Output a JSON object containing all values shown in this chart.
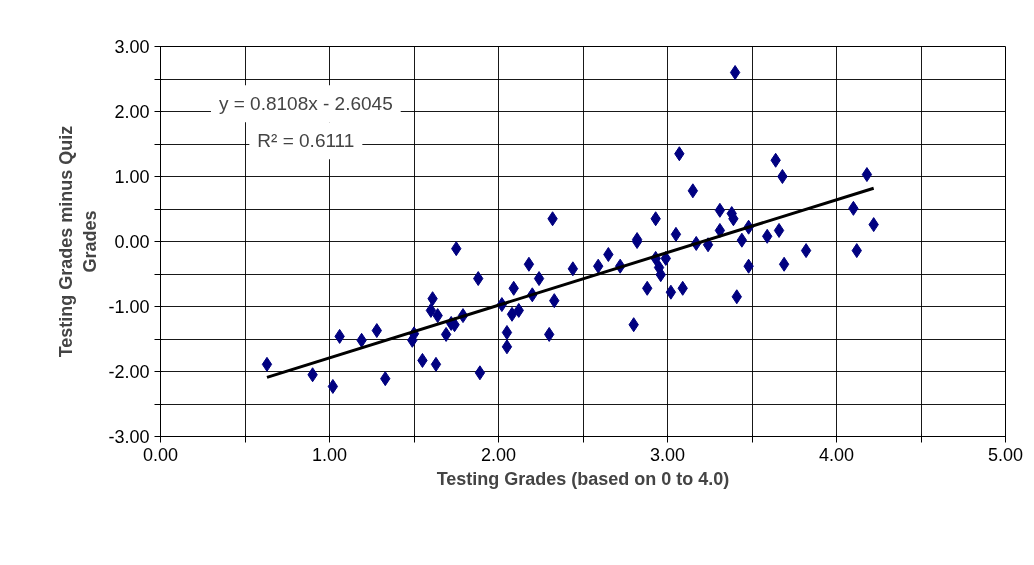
{
  "chart_data": {
    "type": "scatter",
    "xlabel": "Testing Grades (based on 0 to 4.0)",
    "ylabel": "Testing Grades minus Quiz Grades",
    "annotations": [
      "y = 0.8108x - 2.6045",
      "R² = 0.6111"
    ],
    "xlim": [
      0,
      5
    ],
    "ylim": [
      -3,
      3
    ],
    "xticks": [
      {
        "value": 0,
        "label": "0.00"
      },
      {
        "value": 0.5,
        "label": null
      },
      {
        "value": 1,
        "label": "1.00"
      },
      {
        "value": 1.5,
        "label": null
      },
      {
        "value": 2,
        "label": "2.00"
      },
      {
        "value": 2.5,
        "label": null
      },
      {
        "value": 3,
        "label": "3.00"
      },
      {
        "value": 3.5,
        "label": null
      },
      {
        "value": 4,
        "label": "4.00"
      },
      {
        "value": 4.5,
        "label": null
      },
      {
        "value": 5,
        "label": "5.00"
      }
    ],
    "yticks": [
      {
        "value": -3,
        "label": "-3.00"
      },
      {
        "value": -2.5,
        "label": null
      },
      {
        "value": -2,
        "label": "-2.00"
      },
      {
        "value": -1.5,
        "label": null
      },
      {
        "value": -1,
        "label": "-1.00"
      },
      {
        "value": -0.5,
        "label": null
      },
      {
        "value": 0,
        "label": "0.00"
      },
      {
        "value": 0.5,
        "label": null
      },
      {
        "value": 1,
        "label": "1.00"
      },
      {
        "value": 1.5,
        "label": null
      },
      {
        "value": 2,
        "label": "2.00"
      },
      {
        "value": 2.5,
        "label": null
      },
      {
        "value": 3,
        "label": "3.00"
      }
    ],
    "grid": true,
    "marker": "diamond",
    "series": [
      {
        "color": "#000080",
        "x": [
          0.63,
          0.9,
          1.02,
          1.06,
          1.19,
          1.28,
          1.33,
          1.49,
          1.5,
          1.55,
          1.61,
          1.6,
          1.63,
          1.64,
          1.69,
          1.72,
          1.74,
          1.75,
          1.79,
          1.88,
          1.89,
          2.02,
          2.05,
          2.05,
          2.09,
          2.08,
          2.12,
          2.18,
          2.2,
          2.24,
          2.3,
          2.32,
          2.33,
          2.44,
          2.59,
          2.65,
          2.72,
          2.8,
          2.82,
          2.82,
          2.88,
          2.93,
          2.93,
          2.95,
          2.96,
          2.99,
          3.02,
          3.05,
          3.07,
          3.09,
          3.15,
          3.17,
          3.24,
          3.31,
          3.31,
          3.38,
          3.39,
          3.4,
          3.41,
          3.44,
          3.48,
          3.48,
          3.59,
          3.64,
          3.66,
          3.68,
          3.69,
          3.82,
          4.1,
          4.12,
          4.18,
          4.22
        ],
        "values": [
          -1.89,
          -2.05,
          -2.23,
          -1.46,
          -1.52,
          -1.37,
          -2.11,
          -1.52,
          -1.42,
          -1.83,
          -0.88,
          -1.06,
          -1.89,
          -1.14,
          -1.43,
          -1.26,
          -1.28,
          -0.11,
          -1.14,
          -0.57,
          -2.02,
          -0.97,
          -1.62,
          -1.4,
          -0.72,
          -1.12,
          -1.06,
          -0.35,
          -0.82,
          -0.57,
          -1.43,
          0.35,
          -0.91,
          -0.42,
          -0.38,
          -0.2,
          -0.38,
          -1.28,
          0.03,
          0.0,
          -0.72,
          0.35,
          -0.26,
          -0.4,
          -0.51,
          -0.26,
          -0.78,
          0.11,
          1.35,
          -0.72,
          0.78,
          -0.03,
          -0.05,
          0.48,
          0.17,
          0.43,
          0.35,
          2.6,
          -0.85,
          0.02,
          0.22,
          -0.38,
          0.08,
          1.25,
          0.17,
          1.0,
          -0.35,
          -0.14,
          0.51,
          -0.14,
          1.03,
          0.26
        ]
      },
      {
        "type": "line",
        "color": "#000000",
        "x": [
          0.63,
          4.22
        ],
        "values": [
          -2.09,
          0.82
        ],
        "marker": "none",
        "line_style": "solid"
      }
    ]
  }
}
